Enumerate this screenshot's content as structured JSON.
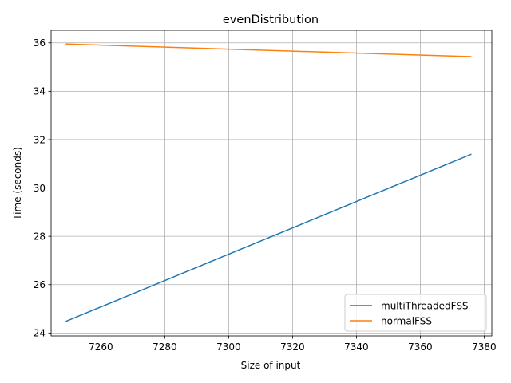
{
  "chart_data": {
    "type": "line",
    "title": "evenDistribution",
    "xlabel": "Size of input",
    "ylabel": "Time (seconds)",
    "xlim": [
      7244.4,
      7382.4
    ],
    "ylim": [
      23.88,
      36.52
    ],
    "xticks": [
      7260,
      7280,
      7300,
      7320,
      7340,
      7360,
      7380
    ],
    "yticks": [
      24,
      26,
      28,
      30,
      32,
      34,
      36
    ],
    "grid": true,
    "legend_position": "lower right",
    "series": [
      {
        "name": "multiThreadedFSS",
        "color": "#1f77b4",
        "x": [
          7249,
          7376
        ],
        "y": [
          24.48,
          31.4
        ]
      },
      {
        "name": "normalFSS",
        "color": "#ff7f0e",
        "x": [
          7249,
          7376
        ],
        "y": [
          35.95,
          35.43
        ]
      }
    ]
  }
}
